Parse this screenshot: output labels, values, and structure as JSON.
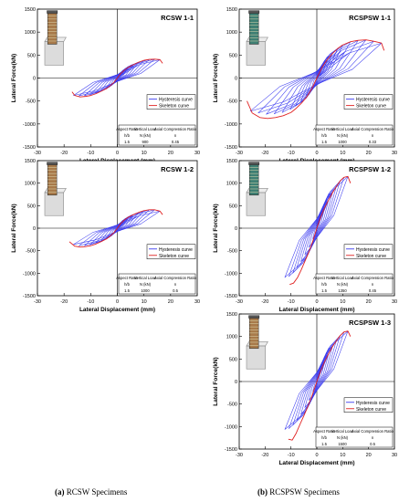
{
  "captions": {
    "left_letter": "(a)",
    "left_text": " RCSW Specimens",
    "right_letter": "(b)",
    "right_text": " RCSPSW Specimens"
  },
  "chart_data": [
    {
      "type": "line",
      "title": "RCSW 1-1",
      "xlabel": "Lateral Displacement (mm)",
      "ylabel": "Lateral Force(kN)",
      "xlim": [
        -30,
        30
      ],
      "ylim": [
        -1500,
        1500
      ],
      "xticks": [
        -30,
        -20,
        -10,
        0,
        10,
        20,
        30
      ],
      "yticks": [
        -1500,
        -1000,
        -500,
        0,
        500,
        1000,
        1500
      ],
      "grid": false,
      "legend": "bottom-right",
      "series": [
        {
          "name": "Hysteresis curve",
          "color": "#3b3bf0",
          "peak_displacements": [
            1.2,
            2.5,
            4,
            6,
            8,
            10,
            12,
            14,
            16
          ],
          "peak_forces": [
            95,
            165,
            230,
            290,
            345,
            385,
            405,
            410,
            400
          ]
        },
        {
          "name": "Skeleton curve",
          "color": "#e02020",
          "x": [
            -17,
            -16,
            -14,
            -12,
            -10,
            -8,
            -6,
            -4,
            -2.5,
            -1.2,
            0,
            1.2,
            2.5,
            4,
            6,
            8,
            10,
            12,
            14,
            16,
            17
          ],
          "y": [
            -300,
            -380,
            -410,
            -400,
            -380,
            -340,
            -285,
            -225,
            -160,
            -90,
            0,
            95,
            165,
            230,
            290,
            345,
            385,
            405,
            410,
            400,
            320
          ]
        }
      ],
      "params_table": {
        "headers": [
          "Aspect Ratio",
          "Vertical Load",
          "Axial Compression Ratio"
        ],
        "symbols": [
          "h/b",
          "N (kN)",
          "n"
        ],
        "values": [
          "1.5",
          "900",
          "0.45"
        ]
      }
    },
    {
      "type": "line",
      "title": "RCSPSW 1-1",
      "xlabel": "Lateral Displacement (mm)",
      "ylabel": "Lateral Force(kN)",
      "xlim": [
        -30,
        30
      ],
      "ylim": [
        -1500,
        1500
      ],
      "xticks": [
        -30,
        -20,
        -10,
        0,
        10,
        20,
        30
      ],
      "yticks": [
        -1500,
        -1000,
        -500,
        0,
        500,
        1000,
        1500
      ],
      "grid": false,
      "legend": "bottom-right",
      "series": [
        {
          "name": "Hysteresis curve",
          "color": "#3b3bf0",
          "peak_displacements": [
            2,
            4,
            6,
            8,
            10,
            13,
            16,
            19,
            22,
            25
          ],
          "peak_forces": [
            230,
            400,
            530,
            640,
            720,
            790,
            820,
            830,
            800,
            760
          ]
        },
        {
          "name": "Skeleton curve",
          "color": "#e02020",
          "x": [
            -27,
            -25,
            -22,
            -19,
            -16,
            -13,
            -10,
            -8,
            -6,
            -4,
            -2,
            0,
            2,
            4,
            6,
            8,
            10,
            13,
            16,
            19,
            22,
            25,
            26
          ],
          "y": [
            -500,
            -760,
            -860,
            -880,
            -860,
            -820,
            -750,
            -660,
            -550,
            -420,
            -240,
            0,
            230,
            400,
            530,
            640,
            720,
            790,
            820,
            830,
            800,
            760,
            600
          ]
        }
      ],
      "params_table": {
        "headers": [
          "Aspect Ratio",
          "Vertical Load",
          "Axial Compression Ratio"
        ],
        "symbols": [
          "h/b",
          "N (kN)",
          "n"
        ],
        "values": [
          "1.5",
          "1000",
          "0.33"
        ]
      }
    },
    {
      "type": "line",
      "title": "RCSW 1-2",
      "xlabel": "Lateral Displacement (mm)",
      "ylabel": "Lateral Force(kN)",
      "xlim": [
        -30,
        30
      ],
      "ylim": [
        -1500,
        1500
      ],
      "xticks": [
        -30,
        -20,
        -10,
        0,
        10,
        20,
        30
      ],
      "yticks": [
        -1500,
        -1000,
        -500,
        0,
        500,
        1000,
        1500
      ],
      "grid": false,
      "legend": "bottom-right",
      "series": [
        {
          "name": "Hysteresis curve",
          "color": "#3b3bf0",
          "peak_displacements": [
            1.2,
            2.5,
            4,
            6,
            8,
            10,
            12,
            14,
            16
          ],
          "peak_forces": [
            100,
            175,
            240,
            300,
            350,
            390,
            410,
            410,
            380
          ]
        },
        {
          "name": "Skeleton curve",
          "color": "#e02020",
          "x": [
            -18,
            -16,
            -14,
            -12,
            -10,
            -8,
            -6,
            -4,
            -2.5,
            -1.2,
            0,
            1.2,
            2.5,
            4,
            6,
            8,
            10,
            12,
            14,
            16,
            17
          ],
          "y": [
            -300,
            -400,
            -420,
            -410,
            -390,
            -350,
            -295,
            -235,
            -165,
            -95,
            0,
            100,
            175,
            240,
            300,
            350,
            390,
            410,
            410,
            380,
            300
          ]
        }
      ],
      "params_table": {
        "headers": [
          "Aspect Ratio",
          "Vertical Load",
          "Axial Compression Ratio"
        ],
        "symbols": [
          "h/b",
          "N (kN)",
          "n"
        ],
        "values": [
          "1.5",
          "1000",
          "0.5"
        ]
      }
    },
    {
      "type": "line",
      "title": "RCSPSW 1-2",
      "xlabel": "Lateral Displacement (mm)",
      "ylabel": "Lateral Force(kN)",
      "xlim": [
        -30,
        30
      ],
      "ylim": [
        -1500,
        1500
      ],
      "xticks": [
        -30,
        -20,
        -10,
        0,
        10,
        20,
        30
      ],
      "yticks": [
        -1500,
        -1000,
        -500,
        0,
        500,
        1000,
        1500
      ],
      "grid": false,
      "legend": "bottom-right",
      "series": [
        {
          "name": "Hysteresis curve",
          "color": "#3b3bf0",
          "peak_displacements": [
            1.5,
            3,
            4.5,
            6,
            7.5,
            9,
            10.5,
            12
          ],
          "peak_forces": [
            250,
            450,
            620,
            780,
            920,
            1050,
            1130,
            1150
          ]
        },
        {
          "name": "Skeleton curve",
          "color": "#e02020",
          "x": [
            -10.5,
            -9,
            -7.5,
            -6,
            -4.5,
            -3,
            -1.5,
            0,
            1.5,
            3,
            4.5,
            6,
            7.5,
            9,
            10.5,
            12,
            13
          ],
          "y": [
            -1250,
            -1220,
            -1100,
            -920,
            -720,
            -520,
            -280,
            0,
            250,
            450,
            620,
            780,
            920,
            1050,
            1130,
            1150,
            1000
          ]
        }
      ],
      "params_table": {
        "headers": [
          "Aspect Ratio",
          "Vertical Load",
          "Axial Compression Ratio"
        ],
        "symbols": [
          "h/b",
          "N (kN)",
          "n"
        ],
        "values": [
          "1.5",
          "1350",
          "0.45"
        ]
      }
    },
    {
      "type": "line",
      "title": "RCSPSW 1-3",
      "xlabel": "Lateral Displacement (mm)",
      "ylabel": "Lateral Force(kN)",
      "xlim": [
        -30,
        30
      ],
      "ylim": [
        -1500,
        1500
      ],
      "xticks": [
        -30,
        -20,
        -10,
        0,
        10,
        20,
        30
      ],
      "yticks": [
        -1500,
        -1000,
        -500,
        0,
        500,
        1000,
        1500
      ],
      "grid": false,
      "legend": "bottom-right",
      "series": [
        {
          "name": "Hysteresis curve",
          "color": "#3b3bf0",
          "peak_displacements": [
            1.5,
            3,
            4.5,
            6,
            7.5,
            9,
            10.5,
            12
          ],
          "peak_forces": [
            240,
            440,
            610,
            770,
            900,
            1020,
            1100,
            1120
          ]
        },
        {
          "name": "Skeleton curve",
          "color": "#e02020",
          "x": [
            -11,
            -9.5,
            -8,
            -6.5,
            -5,
            -3.5,
            -2,
            -1,
            0,
            1.5,
            3,
            4.5,
            6,
            7.5,
            9,
            10.5,
            12,
            13
          ],
          "y": [
            -1280,
            -1300,
            -1150,
            -950,
            -760,
            -560,
            -340,
            -170,
            0,
            240,
            440,
            610,
            770,
            900,
            1020,
            1100,
            1120,
            1000
          ]
        }
      ],
      "params_table": {
        "headers": [
          "Aspect Ratio",
          "Vertical Load",
          "Axial Compression Ratio"
        ],
        "symbols": [
          "h/b",
          "N (kN)",
          "n"
        ],
        "values": [
          "1.5",
          "1500",
          "0.5"
        ]
      }
    }
  ]
}
